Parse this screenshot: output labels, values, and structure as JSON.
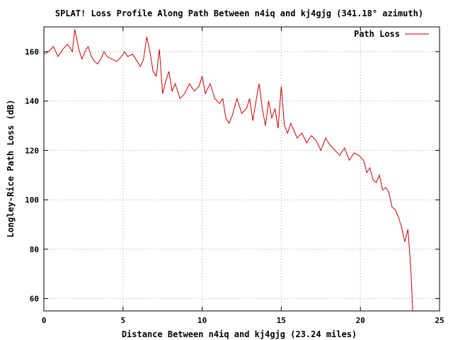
{
  "chart_data": {
    "type": "line",
    "title": "SPLAT! Loss Profile Along Path Between n4iq and kj4gjg (341.18° azimuth)",
    "xlabel": "Distance Between n4iq and kj4gjg (23.24 miles)",
    "ylabel": "Longley-Rice Path Loss (dB)",
    "xlim": [
      0,
      25
    ],
    "ylim": [
      55,
      170
    ],
    "xticks": [
      0,
      5,
      10,
      15,
      20,
      25
    ],
    "yticks": [
      60,
      80,
      100,
      120,
      140,
      160
    ],
    "grid": true,
    "legend_position": "top-right",
    "series_color": "#cc0000",
    "series": [
      {
        "name": "Path Loss",
        "x": [
          0,
          0.3,
          0.6,
          0.9,
          1.2,
          1.5,
          1.8,
          1.95,
          2.05,
          2.2,
          2.4,
          2.6,
          2.8,
          3.0,
          3.2,
          3.4,
          3.6,
          3.8,
          4.0,
          4.3,
          4.6,
          4.9,
          5.1,
          5.3,
          5.6,
          5.9,
          6.1,
          6.3,
          6.5,
          6.7,
          6.9,
          7.1,
          7.3,
          7.5,
          7.7,
          7.9,
          8.1,
          8.3,
          8.6,
          8.9,
          9.2,
          9.5,
          9.8,
          10.0,
          10.2,
          10.5,
          10.8,
          11.1,
          11.3,
          11.5,
          11.7,
          11.9,
          12.2,
          12.5,
          12.8,
          13.0,
          13.2,
          13.4,
          13.6,
          13.8,
          14.0,
          14.2,
          14.4,
          14.6,
          14.8,
          15.0,
          15.2,
          15.4,
          15.6,
          15.8,
          16.0,
          16.3,
          16.6,
          16.9,
          17.2,
          17.5,
          17.8,
          18.1,
          18.4,
          18.7,
          19.0,
          19.3,
          19.6,
          19.9,
          20.2,
          20.4,
          20.6,
          20.8,
          21.0,
          21.2,
          21.4,
          21.6,
          21.8,
          22.0,
          22.2,
          22.4,
          22.6,
          22.8,
          23.0,
          23.1,
          23.2,
          23.3
        ],
        "values": [
          159,
          160,
          162,
          158,
          161,
          163,
          160,
          169,
          166,
          161,
          157,
          160,
          162,
          158,
          156,
          155,
          157,
          160,
          158,
          157,
          156,
          158,
          160,
          158,
          159,
          156,
          154,
          157,
          166,
          160,
          152,
          150,
          161,
          143,
          148,
          152,
          144,
          147,
          141,
          143,
          147,
          144,
          146,
          150,
          143,
          147,
          141,
          139,
          141,
          133,
          131,
          134,
          141,
          135,
          137,
          141,
          132,
          140,
          147,
          137,
          130,
          140,
          133,
          137,
          129,
          146,
          130,
          127,
          131,
          128,
          125,
          127,
          123,
          126,
          124,
          120,
          125,
          122,
          120,
          118,
          121,
          116,
          119,
          118,
          116,
          111,
          113,
          108,
          107,
          110,
          104,
          105,
          103,
          97,
          96,
          93,
          89,
          83,
          88,
          80,
          70,
          55
        ]
      }
    ]
  }
}
